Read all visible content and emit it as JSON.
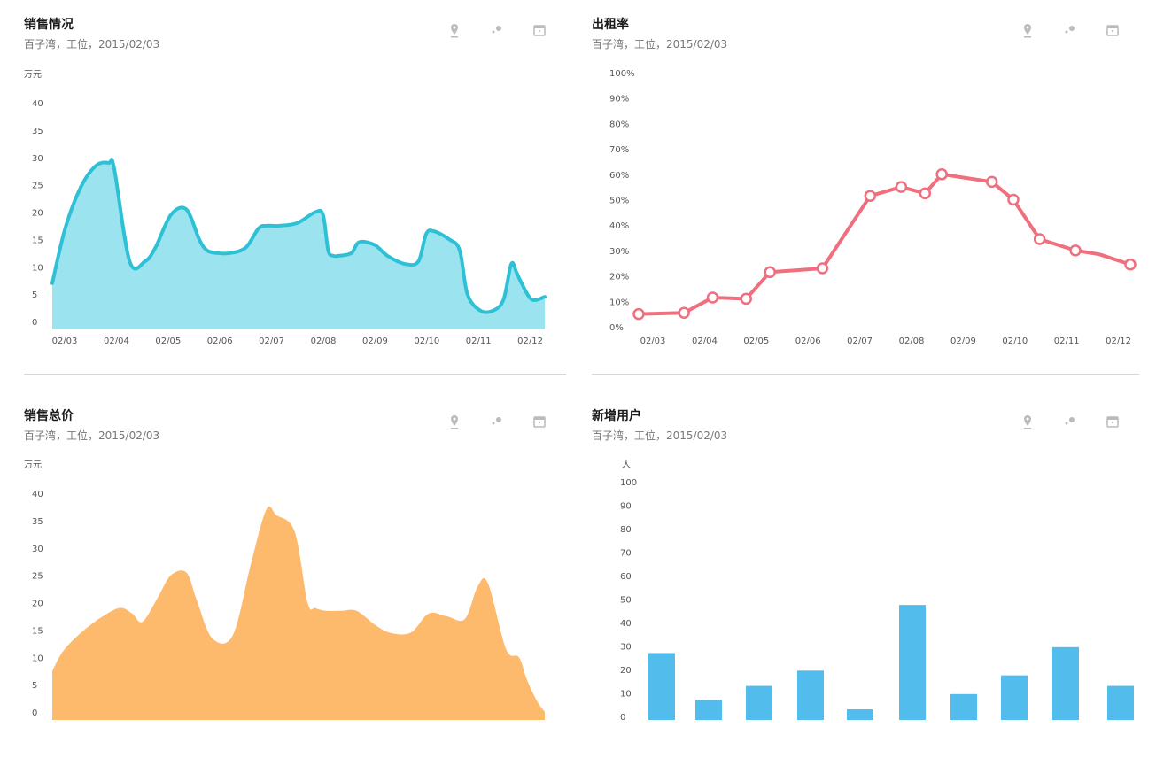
{
  "cards": [
    {
      "title": "销售情况",
      "subtitle": "百子湾，工位，2015/02/03",
      "unit": "万元",
      "icons": [
        "location-pin-icon",
        "dots-icon",
        "calendar-icon"
      ],
      "color_line": "#2EC1D6",
      "color_fill": "#9BE4EF"
    },
    {
      "title": "出租率",
      "subtitle": "百子湾，工位，2015/02/03",
      "unit": "",
      "icons": [
        "location-pin-icon",
        "dots-icon",
        "calendar-icon"
      ],
      "color_line": "#EF6F7E"
    },
    {
      "title": "销售总价",
      "subtitle": "百子湾，工位，2015/02/03",
      "unit": "万元",
      "icons": [
        "location-pin-icon",
        "dots-icon",
        "calendar-icon"
      ],
      "color_fill": "#FDBA6C"
    },
    {
      "title": "新增用户",
      "subtitle": "百子湾，工位，2015/02/03",
      "unit": "人",
      "icons": [
        "location-pin-icon",
        "dots-icon",
        "calendar-icon"
      ],
      "color_fill": "#52BDEC"
    }
  ],
  "chart_data": [
    {
      "type": "area",
      "ylabel": "万元",
      "ylim": [
        0,
        40
      ],
      "yticks": [
        0,
        5,
        10,
        15,
        20,
        25,
        30,
        35,
        40
      ],
      "categories": [
        "02/03",
        "02/04",
        "02/05",
        "02/06",
        "02/07",
        "02/08",
        "02/09",
        "02/10",
        "02/11",
        "02/12"
      ],
      "x": [
        0,
        0.25,
        0.55,
        0.85,
        1.1,
        1.2,
        1.5,
        1.8,
        2.0,
        2.3,
        2.6,
        2.85,
        3.0,
        3.2,
        3.45,
        3.75,
        4.0,
        4.15,
        4.4,
        4.75,
        5.1,
        5.25,
        5.35,
        5.45,
        5.55,
        5.8,
        5.95,
        6.25,
        6.5,
        6.85,
        7.1,
        7.25,
        7.4,
        7.7,
        7.9,
        8.05,
        8.3,
        8.55,
        8.75,
        8.9,
        9.0,
        9.1,
        9.3,
        9.55
      ],
      "values": [
        7,
        17,
        24.5,
        28.5,
        29,
        28,
        11,
        11,
        13.5,
        19.5,
        20.5,
        15,
        13,
        12.5,
        12.5,
        13.5,
        17,
        17.5,
        17.5,
        18,
        20,
        19.5,
        13,
        12,
        12,
        12.5,
        14.5,
        14,
        12,
        10.5,
        11,
        16,
        16.5,
        15,
        13,
        5,
        2,
        2,
        4,
        10.5,
        9,
        7,
        4,
        4.5
      ]
    },
    {
      "type": "line",
      "ylim": [
        0,
        100
      ],
      "yticks": [
        "0%",
        "10%",
        "20%",
        "30%",
        "40%",
        "50%",
        "60%",
        "70%",
        "80%",
        "90%",
        "100%"
      ],
      "categories": [
        "02/03",
        "02/04",
        "02/05",
        "02/06",
        "02/07",
        "02/08",
        "02/09",
        "02/10",
        "02/11",
        "02/12"
      ],
      "x": [
        0,
        0.95,
        1.55,
        2.25,
        2.75,
        3.85,
        4.85,
        5.5,
        6.0,
        6.35,
        7.4,
        7.85,
        8.4,
        9.15,
        9.65,
        10.3
      ],
      "values": [
        5,
        5.5,
        11.5,
        11,
        21.5,
        23,
        51.5,
        55,
        52.5,
        60,
        57,
        50,
        34.5,
        30,
        28.5,
        24.5
      ],
      "markers": [
        true,
        true,
        true,
        true,
        true,
        true,
        true,
        true,
        true,
        true,
        true,
        true,
        true,
        true,
        false,
        true
      ]
    },
    {
      "type": "area",
      "ylabel": "万元",
      "ylim": [
        0,
        40
      ],
      "yticks": [
        0,
        5,
        10,
        15,
        20,
        25,
        30,
        35,
        40
      ],
      "x": [
        0,
        0.2,
        0.5,
        0.9,
        1.3,
        1.55,
        1.75,
        2.05,
        2.3,
        2.6,
        2.8,
        3.1,
        3.5,
        3.85,
        4.15,
        4.35,
        4.7,
        4.95,
        5.1,
        5.3,
        5.6,
        5.9,
        6.25,
        6.55,
        6.95,
        7.3,
        7.65,
        8.0,
        8.25,
        8.45,
        8.8,
        9.05,
        9.2,
        9.4,
        9.55
      ],
      "values": [
        7.5,
        11,
        14,
        17,
        19,
        18,
        16.5,
        21,
        25,
        25.5,
        20.5,
        13.5,
        14,
        27,
        37,
        36,
        33,
        20,
        19,
        18.5,
        18.5,
        18.5,
        16,
        14.5,
        14.5,
        18,
        17.5,
        17,
        23,
        23.5,
        11.5,
        10,
        6,
        2,
        0
      ]
    },
    {
      "type": "bar",
      "ylabel": "人",
      "ylim": [
        0,
        100
      ],
      "yticks": [
        0,
        10,
        20,
        30,
        40,
        50,
        60,
        70,
        80,
        90,
        100
      ],
      "categories": [
        "",
        "",
        "",
        "",
        "",
        "",
        "",
        "",
        "",
        ""
      ],
      "values": [
        27,
        7,
        13,
        19.5,
        3,
        47.5,
        9.5,
        17.5,
        29.5,
        13
      ]
    }
  ]
}
